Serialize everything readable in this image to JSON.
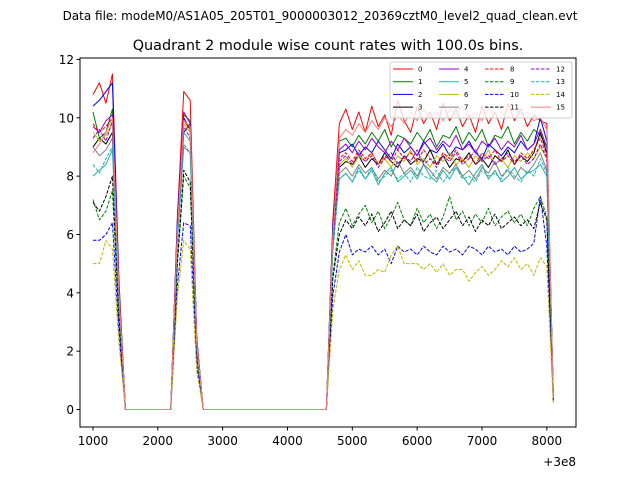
{
  "chart_data": {
    "type": "line",
    "suptitle": "Data file: modeM0/AS1A05_205T01_9000003012_20369cztM0_level2_quad_clean.evt",
    "title": "Quadrant 2 module wise count rates with 100.0s bins.",
    "xlabel": "",
    "ylabel": "",
    "x_offset_label": "+3e8",
    "xlim": [
      800,
      8450
    ],
    "ylim": [
      -0.6,
      12.05
    ],
    "xticks": [
      1000,
      2000,
      3000,
      4000,
      5000,
      6000,
      7000,
      8000
    ],
    "yticks": [
      0,
      2,
      4,
      6,
      8,
      10,
      12
    ],
    "legend_position": "top-right",
    "x": [
      1000,
      1100,
      1200,
      1300,
      1400,
      1500,
      1600,
      1700,
      1800,
      1900,
      2000,
      2100,
      2200,
      2300,
      2400,
      2500,
      2600,
      2700,
      2800,
      2900,
      3000,
      3100,
      3200,
      3300,
      3400,
      3500,
      3600,
      3700,
      3800,
      3900,
      4000,
      4100,
      4200,
      4300,
      4400,
      4500,
      4600,
      4700,
      4800,
      4900,
      5000,
      5100,
      5200,
      5300,
      5400,
      5500,
      5600,
      5700,
      5800,
      5900,
      6000,
      6100,
      6200,
      6300,
      6400,
      6500,
      6600,
      6700,
      6800,
      6900,
      7000,
      7100,
      7200,
      7300,
      7400,
      7500,
      7600,
      7700,
      7800,
      7900,
      8000,
      8100
    ],
    "series": [
      {
        "name": "0",
        "color": "#ff0000",
        "dash": false,
        "values": [
          10.8,
          11.2,
          10.5,
          11.5,
          4.5,
          0,
          0,
          0,
          0,
          0,
          0,
          0,
          0,
          6.5,
          10.9,
          10.6,
          2.5,
          0,
          0,
          0,
          0,
          0,
          0,
          0,
          0,
          0,
          0,
          0,
          0,
          0,
          0,
          0,
          0,
          0,
          0,
          0,
          0,
          6.5,
          9.8,
          10.3,
          9.6,
          10.2,
          9.5,
          10.4,
          9.7,
          10.1,
          9.4,
          10.6,
          9.9,
          9.5,
          10.4,
          9.8,
          10.2,
          9.6,
          10.5,
          9.9,
          10.3,
          9.7,
          10.1,
          9.5,
          10.4,
          9.8,
          10.2,
          9.6,
          10.5,
          9.9,
          10.3,
          9.7,
          10.1,
          9.9,
          9.8,
          0.4
        ]
      },
      {
        "name": "1",
        "color": "#008000",
        "dash": false,
        "values": [
          10.2,
          9.3,
          9.5,
          10.3,
          4.2,
          0,
          0,
          0,
          0,
          0,
          0,
          0,
          0,
          6.2,
          10.1,
          9.9,
          2.4,
          0,
          0,
          0,
          0,
          0,
          0,
          0,
          0,
          0,
          0,
          0,
          0,
          0,
          0,
          0,
          0,
          0,
          0,
          0,
          0,
          6.2,
          9.2,
          9.3,
          9.0,
          9.4,
          9.1,
          9.5,
          9.2,
          9.6,
          9.0,
          9.4,
          9.3,
          9.1,
          9.5,
          9.2,
          9.6,
          9.0,
          9.4,
          9.3,
          9.7,
          9.1,
          9.5,
          9.2,
          9.6,
          9.0,
          9.4,
          9.3,
          9.7,
          9.1,
          9.5,
          9.2,
          9.6,
          9.4,
          9.0,
          0.5
        ]
      },
      {
        "name": "2",
        "color": "#0000ff",
        "dash": false,
        "values": [
          10.4,
          10.6,
          10.9,
          11.2,
          4.3,
          0,
          0,
          0,
          0,
          0,
          0,
          0,
          0,
          6.4,
          10.0,
          9.6,
          2.4,
          0,
          0,
          0,
          0,
          0,
          0,
          0,
          0,
          0,
          0,
          0,
          0,
          0,
          0,
          0,
          0,
          0,
          0,
          0,
          0,
          6.3,
          8.8,
          8.9,
          9.1,
          8.7,
          9.0,
          8.8,
          9.2,
          8.9,
          8.6,
          9.1,
          8.8,
          9.0,
          8.7,
          9.2,
          8.9,
          8.8,
          9.1,
          8.7,
          9.0,
          8.9,
          9.2,
          8.8,
          8.6,
          9.1,
          8.9,
          8.7,
          9.0,
          8.8,
          9.2,
          8.9,
          9.1,
          10.0,
          9.2,
          0.5
        ]
      },
      {
        "name": "3",
        "color": "#000000",
        "dash": false,
        "values": [
          9.0,
          9.3,
          9.1,
          9.5,
          4.0,
          0,
          0,
          0,
          0,
          0,
          0,
          0,
          0,
          6.0,
          9.5,
          9.8,
          2.3,
          0,
          0,
          0,
          0,
          0,
          0,
          0,
          0,
          0,
          0,
          0,
          0,
          0,
          0,
          0,
          0,
          0,
          0,
          0,
          0,
          5.9,
          8.3,
          8.5,
          8.4,
          8.7,
          8.3,
          8.6,
          8.4,
          8.8,
          8.5,
          8.3,
          8.7,
          8.4,
          8.6,
          8.5,
          8.9,
          8.4,
          8.7,
          8.3,
          8.6,
          8.5,
          8.8,
          8.4,
          8.6,
          8.3,
          8.7,
          8.5,
          8.9,
          8.4,
          8.7,
          8.5,
          8.8,
          9.5,
          8.8,
          0.4
        ]
      },
      {
        "name": "4",
        "color": "#9400d3",
        "dash": false,
        "values": [
          9.7,
          9.5,
          9.9,
          10.1,
          4.1,
          0,
          0,
          0,
          0,
          0,
          0,
          0,
          0,
          6.1,
          10.2,
          9.8,
          2.4,
          0,
          0,
          0,
          0,
          0,
          0,
          0,
          0,
          0,
          0,
          0,
          0,
          0,
          0,
          0,
          0,
          0,
          0,
          0,
          0,
          6.0,
          8.9,
          9.1,
          8.8,
          9.2,
          8.9,
          9.3,
          9.0,
          8.8,
          9.2,
          8.9,
          9.3,
          9.0,
          8.7,
          9.1,
          9.3,
          8.9,
          9.2,
          9.0,
          9.4,
          8.9,
          9.1,
          8.8,
          9.2,
          9.0,
          9.3,
          8.9,
          9.2,
          9.0,
          9.4,
          8.9,
          9.1,
          9.6,
          9.0,
          0.5
        ]
      },
      {
        "name": "5",
        "color": "#20b2aa",
        "dash": false,
        "values": [
          8.0,
          8.2,
          8.4,
          8.9,
          3.9,
          0,
          0,
          0,
          0,
          0,
          0,
          0,
          0,
          5.8,
          9.5,
          9.2,
          2.2,
          0,
          0,
          0,
          0,
          0,
          0,
          0,
          0,
          0,
          0,
          0,
          0,
          0,
          0,
          0,
          0,
          0,
          0,
          0,
          0,
          5.7,
          7.9,
          8.1,
          7.8,
          8.3,
          7.9,
          8.2,
          7.7,
          8.1,
          8.3,
          7.8,
          8.0,
          8.2,
          7.9,
          8.4,
          8.0,
          7.8,
          8.2,
          7.9,
          8.3,
          8.0,
          7.7,
          8.1,
          8.4,
          7.9,
          8.2,
          7.8,
          8.0,
          8.3,
          7.9,
          8.1,
          8.2,
          8.4,
          8.0,
          0.4
        ]
      },
      {
        "name": "6",
        "color": "#bbbb00",
        "dash": false,
        "values": [
          9.5,
          9.2,
          9.4,
          9.8,
          4.0,
          0,
          0,
          0,
          0,
          0,
          0,
          0,
          0,
          5.9,
          9.8,
          9.5,
          2.3,
          0,
          0,
          0,
          0,
          0,
          0,
          0,
          0,
          0,
          0,
          0,
          0,
          0,
          0,
          0,
          0,
          0,
          0,
          0,
          0,
          5.8,
          8.4,
          8.6,
          8.3,
          8.7,
          8.5,
          8.8,
          8.4,
          8.6,
          8.3,
          8.7,
          8.5,
          8.9,
          8.4,
          8.6,
          8.3,
          8.7,
          8.5,
          8.8,
          8.4,
          8.6,
          8.3,
          8.7,
          8.5,
          8.9,
          8.4,
          8.6,
          8.3,
          8.7,
          8.5,
          8.8,
          8.6,
          9.0,
          8.6,
          0.4
        ]
      },
      {
        "name": "7",
        "color": "#808080",
        "dash": false,
        "values": [
          9.0,
          8.7,
          8.9,
          9.3,
          3.8,
          0,
          0,
          0,
          0,
          0,
          0,
          0,
          0,
          5.7,
          9.0,
          8.8,
          2.2,
          0,
          0,
          0,
          0,
          0,
          0,
          0,
          0,
          0,
          0,
          0,
          0,
          0,
          0,
          0,
          0,
          0,
          0,
          0,
          0,
          5.6,
          8.1,
          8.3,
          8.0,
          8.4,
          8.1,
          8.3,
          7.9,
          8.2,
          8.0,
          8.5,
          8.1,
          8.3,
          8.0,
          8.4,
          8.2,
          7.9,
          8.3,
          8.1,
          8.4,
          8.0,
          8.2,
          7.9,
          8.3,
          8.1,
          8.5,
          8.0,
          8.2,
          7.9,
          8.3,
          8.1,
          8.4,
          8.8,
          8.2,
          0.4
        ]
      },
      {
        "name": "8",
        "color": "#ff0000",
        "dash": true,
        "values": [
          9.8,
          9.5,
          9.7,
          10.0,
          4.1,
          0,
          0,
          0,
          0,
          0,
          0,
          0,
          0,
          6.0,
          9.9,
          9.6,
          2.3,
          0,
          0,
          0,
          0,
          0,
          0,
          0,
          0,
          0,
          0,
          0,
          0,
          0,
          0,
          0,
          0,
          0,
          0,
          0,
          0,
          5.9,
          8.6,
          8.8,
          8.5,
          8.9,
          8.6,
          8.8,
          8.4,
          8.7,
          8.5,
          8.9,
          8.6,
          8.8,
          8.5,
          8.9,
          8.6,
          8.4,
          8.8,
          8.6,
          8.9,
          8.5,
          8.7,
          8.4,
          8.8,
          8.6,
          8.9,
          8.5,
          8.7,
          8.4,
          8.8,
          8.6,
          8.9,
          9.3,
          8.7,
          0.4
        ]
      },
      {
        "name": "9",
        "color": "#008000",
        "dash": true,
        "values": [
          7.2,
          6.5,
          6.8,
          7.5,
          3.1,
          0,
          0,
          0,
          0,
          0,
          0,
          0,
          0,
          4.9,
          8.0,
          7.6,
          1.8,
          0,
          0,
          0,
          0,
          0,
          0,
          0,
          0,
          0,
          0,
          0,
          0,
          0,
          0,
          0,
          0,
          0,
          0,
          0,
          0,
          4.6,
          6.4,
          6.9,
          6.3,
          6.7,
          7.0,
          6.4,
          6.8,
          6.2,
          6.6,
          7.1,
          6.5,
          6.3,
          6.9,
          6.4,
          6.7,
          6.2,
          6.6,
          7.3,
          6.5,
          6.8,
          6.3,
          6.7,
          6.4,
          6.9,
          6.3,
          6.6,
          6.8,
          6.4,
          6.7,
          6.3,
          6.9,
          7.3,
          6.6,
          0.3
        ]
      },
      {
        "name": "10",
        "color": "#0000ff",
        "dash": true,
        "values": [
          5.8,
          5.8,
          6.0,
          6.4,
          2.7,
          0,
          0,
          0,
          0,
          0,
          0,
          0,
          0,
          4.2,
          6.4,
          6.3,
          1.5,
          0,
          0,
          0,
          0,
          0,
          0,
          0,
          0,
          0,
          0,
          0,
          0,
          0,
          0,
          0,
          0,
          0,
          0,
          0,
          0,
          3.9,
          5.4,
          6.0,
          5.3,
          5.5,
          5.4,
          5.6,
          5.3,
          5.5,
          5.0,
          5.6,
          5.4,
          5.5,
          5.3,
          5.6,
          5.4,
          5.3,
          5.6,
          5.4,
          5.5,
          5.3,
          5.6,
          5.5,
          5.3,
          5.6,
          5.4,
          5.5,
          5.3,
          5.6,
          5.4,
          5.5,
          5.7,
          7.3,
          5.6,
          0.3
        ]
      },
      {
        "name": "11",
        "color": "#000000",
        "dash": true,
        "values": [
          7.1,
          6.8,
          7.3,
          8.0,
          3.2,
          0,
          0,
          0,
          0,
          0,
          0,
          0,
          0,
          5.0,
          8.2,
          7.8,
          1.9,
          0,
          0,
          0,
          0,
          0,
          0,
          0,
          0,
          0,
          0,
          0,
          0,
          0,
          0,
          0,
          0,
          0,
          0,
          0,
          0,
          4.5,
          6.0,
          6.5,
          6.2,
          6.6,
          6.3,
          6.7,
          6.1,
          6.4,
          6.8,
          6.2,
          6.5,
          6.3,
          6.7,
          6.1,
          6.4,
          6.6,
          6.2,
          6.5,
          6.8,
          6.3,
          6.6,
          6.1,
          6.5,
          6.3,
          6.7,
          6.2,
          6.4,
          6.6,
          6.3,
          6.5,
          6.2,
          7.1,
          6.5,
          0.3
        ]
      },
      {
        "name": "12",
        "color": "#9400d3",
        "dash": true,
        "values": [
          9.3,
          9.6,
          9.2,
          9.9,
          4.0,
          0,
          0,
          0,
          0,
          0,
          0,
          0,
          0,
          5.9,
          9.7,
          9.3,
          2.3,
          0,
          0,
          0,
          0,
          0,
          0,
          0,
          0,
          0,
          0,
          0,
          0,
          0,
          0,
          0,
          0,
          0,
          0,
          0,
          0,
          5.8,
          8.5,
          8.7,
          8.4,
          8.8,
          8.5,
          8.7,
          8.3,
          8.6,
          8.8,
          8.4,
          8.7,
          8.5,
          8.9,
          8.4,
          8.6,
          8.3,
          8.7,
          8.5,
          8.8,
          8.4,
          8.6,
          8.9,
          8.5,
          8.7,
          8.4,
          8.6,
          8.8,
          8.5,
          8.7,
          8.4,
          8.6,
          9.1,
          8.6,
          0.4
        ]
      },
      {
        "name": "13",
        "color": "#20b2aa",
        "dash": true,
        "values": [
          8.4,
          8.1,
          8.6,
          9.0,
          3.7,
          0,
          0,
          0,
          0,
          0,
          0,
          0,
          0,
          5.6,
          9.1,
          8.8,
          2.1,
          0,
          0,
          0,
          0,
          0,
          0,
          0,
          0,
          0,
          0,
          0,
          0,
          0,
          0,
          0,
          0,
          0,
          0,
          0,
          0,
          5.4,
          7.9,
          8.1,
          7.8,
          8.2,
          7.9,
          8.3,
          7.8,
          8.0,
          8.2,
          7.9,
          8.1,
          7.8,
          8.3,
          8.0,
          7.9,
          8.2,
          7.8,
          8.1,
          8.3,
          7.9,
          8.0,
          7.8,
          8.2,
          8.0,
          8.1,
          7.9,
          8.3,
          8.0,
          7.8,
          8.2,
          8.0,
          8.6,
          8.1,
          0.4
        ]
      },
      {
        "name": "14",
        "color": "#bbbb00",
        "dash": true,
        "values": [
          5.0,
          5.0,
          5.8,
          5.5,
          2.3,
          0,
          0,
          0,
          0,
          0,
          0,
          0,
          0,
          3.8,
          5.8,
          5.5,
          1.3,
          0,
          0,
          0,
          0,
          0,
          0,
          0,
          0,
          0,
          0,
          0,
          0,
          0,
          0,
          0,
          0,
          0,
          0,
          0,
          0,
          3.4,
          4.8,
          5.3,
          4.8,
          5.1,
          4.6,
          4.6,
          4.8,
          4.7,
          5.3,
          5.6,
          5.0,
          5.0,
          5.0,
          4.8,
          5.0,
          4.7,
          5.0,
          4.6,
          4.8,
          4.8,
          4.4,
          4.7,
          4.9,
          4.6,
          4.8,
          5.1,
          4.9,
          5.2,
          4.8,
          5.0,
          4.6,
          5.2,
          4.9,
          0.2
        ]
      },
      {
        "name": "15",
        "color": "#f08080",
        "dash": false,
        "values": [
          8.8,
          9.1,
          9.5,
          10.0,
          4.0,
          0,
          0,
          0,
          0,
          0,
          0,
          0,
          0,
          6.0,
          9.9,
          9.7,
          2.3,
          0,
          0,
          0,
          0,
          0,
          0,
          0,
          0,
          0,
          0,
          0,
          0,
          0,
          0,
          0,
          0,
          0,
          0,
          0,
          0,
          6.0,
          9.3,
          9.6,
          9.4,
          9.8,
          9.5,
          9.9,
          9.6,
          10.0,
          9.7,
          10.1,
          9.8,
          10.2,
          9.9,
          10.3,
          10.0,
          10.2,
          9.9,
          10.3,
          10.1,
          10.4,
          10.0,
          10.2,
          9.9,
          10.3,
          10.1,
          10.2,
          10.0,
          10.3,
          10.1,
          10.2,
          9.9,
          10.0,
          9.6,
          0.4
        ]
      }
    ]
  }
}
